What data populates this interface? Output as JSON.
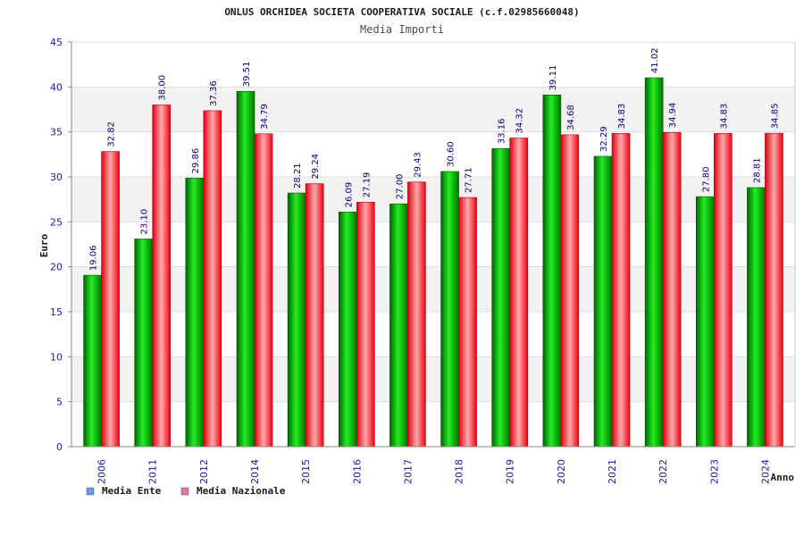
{
  "chart_data": {
    "type": "bar",
    "title": "ONLUS ORCHIDEA SOCIETA COOPERATIVA SOCIALE (c.f.02985660048)",
    "subtitle": "Media Importi",
    "xlabel": "Anno",
    "ylabel": "Euro",
    "ylim": [
      0,
      45
    ],
    "yticks": [
      0,
      5,
      10,
      15,
      20,
      25,
      30,
      35,
      40,
      45
    ],
    "grid": true,
    "legend_position": "bottom-left",
    "categories": [
      "2006",
      "2011",
      "2012",
      "2014",
      "2015",
      "2016",
      "2017",
      "2018",
      "2019",
      "2020",
      "2021",
      "2022",
      "2023",
      "2024"
    ],
    "series": [
      {
        "name": "Media Ente",
        "legend_color": "#6699ee",
        "bar_color": "#00aa00",
        "labels": [
          "19.06",
          "23.10",
          "29.86",
          "39.51",
          "28.21",
          "26.09",
          "27.00",
          "30.60",
          "33.16",
          "39.11",
          "32.29",
          "41.02",
          "27.80",
          "28.81"
        ],
        "values": [
          19.06,
          23.1,
          29.86,
          39.51,
          28.21,
          26.09,
          27.0,
          30.6,
          33.16,
          39.11,
          32.29,
          41.02,
          27.8,
          28.81
        ]
      },
      {
        "name": "Media Nazionale",
        "legend_color": "#dd77aa",
        "bar_color": "#ee1122",
        "labels": [
          "32.82",
          "38.00",
          "37.36",
          "34.79",
          "29.24",
          "27.19",
          "29.43",
          "27.71",
          "34.32",
          "34.68",
          "34.83",
          "34.94",
          "34.83",
          "34.85"
        ],
        "values": [
          32.82,
          38.0,
          37.36,
          34.79,
          29.24,
          27.19,
          29.43,
          27.71,
          34.32,
          34.68,
          34.83,
          34.94,
          34.83,
          34.85
        ]
      }
    ]
  }
}
